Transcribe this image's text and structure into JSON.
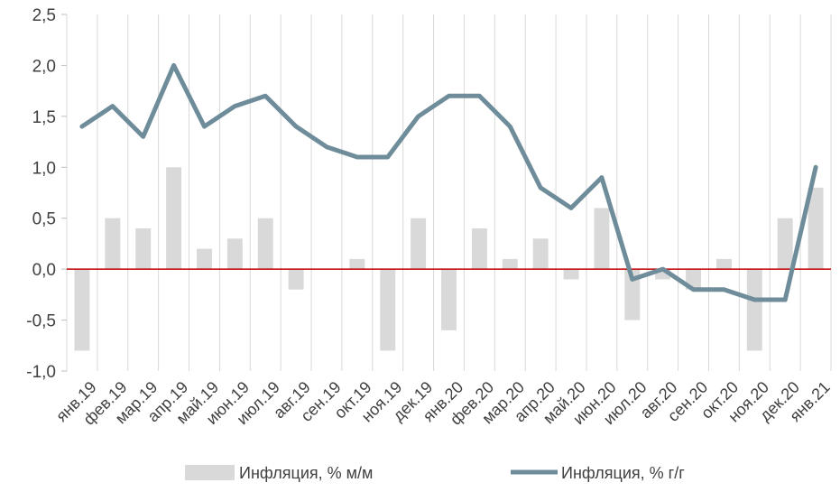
{
  "chart_data": {
    "type": "bar",
    "categories": [
      "янв.19",
      "фев.19",
      "мар.19",
      "апр.19",
      "май.19",
      "июн.19",
      "июл.19",
      "авг.19",
      "сен.19",
      "окт.19",
      "ноя.19",
      "дек.19",
      "янв.20",
      "фев.20",
      "мар.20",
      "апр.20",
      "май.20",
      "июн.20",
      "июл.20",
      "авг.20",
      "сен.20",
      "окт.20",
      "ноя.20",
      "дек.20",
      "янв.21"
    ],
    "series": [
      {
        "name": "Инфляция, % м/м",
        "type": "bar",
        "color": "#d9d9d9",
        "values": [
          -0.8,
          0.5,
          0.4,
          1.0,
          0.2,
          0.3,
          0.5,
          -0.2,
          0.0,
          0.1,
          -0.8,
          0.5,
          -0.6,
          0.4,
          0.1,
          0.3,
          -0.1,
          0.6,
          -0.5,
          -0.1,
          -0.2,
          0.1,
          -0.8,
          0.5,
          0.8
        ]
      },
      {
        "name": "Инфляция, % г/г",
        "type": "line",
        "color": "#6e8c9a",
        "values": [
          1.4,
          1.6,
          1.3,
          2.0,
          1.4,
          1.6,
          1.7,
          1.4,
          1.2,
          1.1,
          1.1,
          1.5,
          1.7,
          1.7,
          1.4,
          0.8,
          0.6,
          0.9,
          -0.1,
          0.0,
          -0.2,
          -0.2,
          -0.3,
          -0.3,
          1.0
        ]
      }
    ],
    "ylim": [
      -1.0,
      2.5
    ],
    "yticks": [
      "2,5",
      "2,0",
      "1,5",
      "1,0",
      "0,5",
      "0,0",
      "-0,5",
      "-1,0"
    ],
    "ytick_values": [
      2.5,
      2.0,
      1.5,
      1.0,
      0.5,
      0.0,
      -0.5,
      -1.0
    ],
    "zero_line_color": "#c00000",
    "grid": "vertical",
    "legend_position": "bottom",
    "title": "",
    "xlabel": "",
    "ylabel": ""
  }
}
